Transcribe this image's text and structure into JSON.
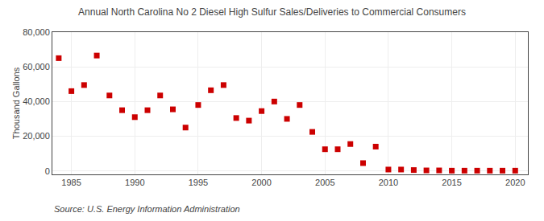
{
  "chart_data": {
    "type": "scatter",
    "title": "Annual North Carolina No 2 Diesel High Sulfur Sales/Deliveries to Commercial Consumers",
    "ylabel": "Thousand Gallons",
    "annotations": [
      "Source: U.S. Energy Information Administration"
    ],
    "color": "#cc0000",
    "marker": "square",
    "xlim": [
      1983.5,
      2021
    ],
    "xticks": [
      1985,
      1990,
      1995,
      2000,
      2005,
      2010,
      2015,
      2020
    ],
    "ylim": [
      -2000,
      80000
    ],
    "yticks": [
      0,
      {
        "value": 20000,
        "label": "20,000"
      },
      {
        "value": 40000,
        "label": "40,000"
      },
      {
        "value": 60000,
        "label": "60,000"
      },
      {
        "value": 80000,
        "label": "80,000"
      }
    ],
    "grid": true,
    "x": [
      1984,
      1985,
      1986,
      1987,
      1988,
      1989,
      1990,
      1991,
      1992,
      1993,
      1994,
      1995,
      1996,
      1997,
      1998,
      1999,
      2000,
      2001,
      2002,
      2003,
      2004,
      2005,
      2006,
      2007,
      2008,
      2009,
      2010,
      2011,
      2012,
      2013,
      2014,
      2015,
      2016,
      2017,
      2018,
      2019,
      2020
    ],
    "values": [
      65000,
      46000,
      49500,
      66500,
      43500,
      35000,
      31000,
      35000,
      43500,
      35500,
      25000,
      38000,
      46500,
      49500,
      30500,
      29000,
      34500,
      40000,
      30000,
      38000,
      22500,
      12500,
      12500,
      15500,
      4500,
      14000,
      800,
      800,
      500,
      300,
      300,
      150,
      150,
      150,
      150,
      150,
      150
    ]
  }
}
